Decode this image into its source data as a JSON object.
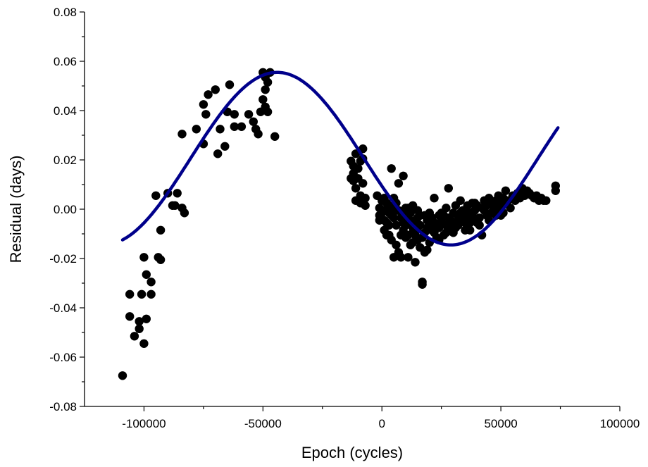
{
  "chart_data": {
    "type": "scatter",
    "title": "",
    "xlabel": "Epoch (cycles)",
    "ylabel": "Residual (days)",
    "xlim": [
      -125000,
      100000
    ],
    "ylim": [
      -0.08,
      0.08
    ],
    "x_ticks": [
      -100000,
      -50000,
      0,
      50000,
      100000
    ],
    "x_tick_labels": [
      "-100000",
      "-50000",
      "0",
      "50000",
      "100000"
    ],
    "y_ticks": [
      -0.08,
      -0.06,
      -0.04,
      -0.02,
      0.0,
      0.02,
      0.04,
      0.06,
      0.08
    ],
    "y_tick_labels": [
      "-0.08",
      "-0.06",
      "-0.04",
      "-0.02",
      "0.00",
      "0.02",
      "0.04",
      "0.06",
      "0.08"
    ],
    "grid": false,
    "legend": "none",
    "colors": {
      "points": "#000000",
      "fit": "#00008b"
    },
    "series": [
      {
        "type": "scatter",
        "points": [
          [
            -109000,
            -0.0675
          ],
          [
            -106000,
            -0.0345
          ],
          [
            -106000,
            -0.0435
          ],
          [
            -104000,
            -0.0515
          ],
          [
            -102000,
            -0.0485
          ],
          [
            -102000,
            -0.0455
          ],
          [
            -101000,
            -0.0345
          ],
          [
            -100000,
            -0.0545
          ],
          [
            -100000,
            -0.0195
          ],
          [
            -99000,
            -0.0445
          ],
          [
            -99000,
            -0.0265
          ],
          [
            -97000,
            -0.0295
          ],
          [
            -97000,
            -0.0345
          ],
          [
            -95000,
            0.0055
          ],
          [
            -94000,
            -0.0195
          ],
          [
            -93000,
            -0.0085
          ],
          [
            -93000,
            -0.0205
          ],
          [
            -90000,
            0.0065
          ],
          [
            -88000,
            0.0015
          ],
          [
            -87000,
            0.0015
          ],
          [
            -86000,
            0.0065
          ],
          [
            -84000,
            0.0005
          ],
          [
            -83000,
            -0.0015
          ],
          [
            -84000,
            0.0305
          ],
          [
            -78000,
            0.0325
          ],
          [
            -75000,
            0.0265
          ],
          [
            -75000,
            0.0425
          ],
          [
            -74000,
            0.0385
          ],
          [
            -73000,
            0.0465
          ],
          [
            -70000,
            0.0485
          ],
          [
            -69000,
            0.0225
          ],
          [
            -68000,
            0.0325
          ],
          [
            -66000,
            0.0255
          ],
          [
            -65000,
            0.0395
          ],
          [
            -64000,
            0.0505
          ],
          [
            -62000,
            0.0335
          ],
          [
            -62000,
            0.0385
          ],
          [
            -59000,
            0.0335
          ],
          [
            -56000,
            0.0385
          ],
          [
            -54000,
            0.0355
          ],
          [
            -53000,
            0.0325
          ],
          [
            -52000,
            0.0305
          ],
          [
            -51000,
            0.0395
          ],
          [
            -50000,
            0.0555
          ],
          [
            -50000,
            0.0445
          ],
          [
            -49000,
            0.0415
          ],
          [
            -49000,
            0.0485
          ],
          [
            -49000,
            0.0535
          ],
          [
            -48000,
            0.0395
          ],
          [
            -48000,
            0.0515
          ],
          [
            -47000,
            0.0555
          ],
          [
            -45000,
            0.0295
          ],
          [
            -13000,
            0.0195
          ],
          [
            -12000,
            0.0175
          ],
          [
            -12000,
            0.0145
          ],
          [
            -12000,
            0.0115
          ],
          [
            -11000,
            0.0225
          ],
          [
            -11000,
            0.0085
          ],
          [
            -10000,
            0.0165
          ],
          [
            -10000,
            0.0125
          ],
          [
            -9000,
            0.0055
          ],
          [
            -9000,
            0.0025
          ],
          [
            -8000,
            0.0245
          ],
          [
            -8000,
            0.0205
          ],
          [
            -8000,
            0.0105
          ],
          [
            -7000,
            0.0045
          ],
          [
            -7000,
            0.0015
          ],
          [
            -13000,
            0.0125
          ],
          [
            -11000,
            0.0035
          ],
          [
            -9000,
            0.0195
          ],
          [
            -2000,
            0.0055
          ],
          [
            -1000,
            0.0005
          ],
          [
            -1000,
            -0.0025
          ],
          [
            0,
            0.0035
          ],
          [
            0,
            -0.0015
          ],
          [
            1000,
            -0.0045
          ],
          [
            1000,
            -0.0085
          ],
          [
            2000,
            0.0025
          ],
          [
            2000,
            -0.0105
          ],
          [
            3000,
            -0.0015
          ],
          [
            3000,
            -0.0065
          ],
          [
            4000,
            0.0165
          ],
          [
            4000,
            -0.0125
          ],
          [
            5000,
            -0.0195
          ],
          [
            5000,
            0.0045
          ],
          [
            6000,
            -0.0065
          ],
          [
            6000,
            -0.0145
          ],
          [
            7000,
            0.0105
          ],
          [
            7000,
            -0.0175
          ],
          [
            8000,
            -0.0035
          ],
          [
            8000,
            -0.0195
          ],
          [
            9000,
            0.0135
          ],
          [
            9000,
            -0.0085
          ],
          [
            10000,
            0.0005
          ],
          [
            10000,
            -0.0115
          ],
          [
            11000,
            -0.0035
          ],
          [
            11000,
            -0.0195
          ],
          [
            12000,
            -0.0055
          ],
          [
            12000,
            -0.0145
          ],
          [
            13000,
            0.0015
          ],
          [
            13000,
            -0.0095
          ],
          [
            14000,
            -0.0215
          ],
          [
            14000,
            -0.0045
          ],
          [
            15000,
            -0.0005
          ],
          [
            15000,
            -0.0125
          ],
          [
            16000,
            -0.0065
          ],
          [
            16000,
            -0.0155
          ],
          [
            17000,
            -0.0295
          ],
          [
            17000,
            -0.0305
          ],
          [
            18000,
            -0.0025
          ],
          [
            18000,
            -0.0095
          ],
          [
            19000,
            -0.0165
          ],
          [
            19000,
            -0.0045
          ],
          [
            20000,
            -0.0135
          ],
          [
            20000,
            -0.0015
          ],
          [
            21000,
            -0.0085
          ],
          [
            22000,
            -0.0055
          ],
          [
            22000,
            0.0045
          ],
          [
            23000,
            -0.0115
          ],
          [
            24000,
            -0.0025
          ],
          [
            24000,
            -0.0075
          ],
          [
            25000,
            -0.0045
          ],
          [
            26000,
            -0.0105
          ],
          [
            27000,
            0.0005
          ],
          [
            27000,
            -0.0065
          ],
          [
            28000,
            0.0085
          ],
          [
            28000,
            -0.0035
          ],
          [
            29000,
            -0.0085
          ],
          [
            30000,
            -0.0015
          ],
          [
            30000,
            -0.0055
          ],
          [
            31000,
            0.0015
          ],
          [
            32000,
            -0.0065
          ],
          [
            32000,
            -0.0025
          ],
          [
            33000,
            0.0035
          ],
          [
            33000,
            -0.0045
          ],
          [
            34000,
            -0.0005
          ],
          [
            35000,
            -0.0085
          ],
          [
            35000,
            -0.0035
          ],
          [
            36000,
            0.0015
          ],
          [
            37000,
            -0.0055
          ],
          [
            37000,
            -0.0015
          ],
          [
            38000,
            0.0025
          ],
          [
            39000,
            -0.0045
          ],
          [
            39000,
            -0.0005
          ],
          [
            40000,
            0.0015
          ],
          [
            41000,
            -0.0035
          ],
          [
            42000,
            0.0005
          ],
          [
            42000,
            -0.0105
          ],
          [
            43000,
            0.0035
          ],
          [
            44000,
            -0.0025
          ],
          [
            44000,
            0.0015
          ],
          [
            45000,
            0.0045
          ],
          [
            46000,
            -0.0015
          ],
          [
            46000,
            0.0025
          ],
          [
            47000,
            0.0005
          ],
          [
            48000,
            0.0035
          ],
          [
            48000,
            -0.0025
          ],
          [
            49000,
            0.0055
          ],
          [
            50000,
            0.0015
          ],
          [
            50000,
            -0.0025
          ],
          [
            51000,
            0.0045
          ],
          [
            52000,
            0.0075
          ],
          [
            52000,
            0.0025
          ],
          [
            53000,
            0.0035
          ],
          [
            54000,
            0.0005
          ],
          [
            55000,
            0.0055
          ],
          [
            56000,
            0.0035
          ],
          [
            57000,
            0.0065
          ],
          [
            58000,
            0.0045
          ],
          [
            59000,
            0.0085
          ],
          [
            60000,
            0.0055
          ],
          [
            61000,
            0.0075
          ],
          [
            62000,
            0.0065
          ],
          [
            63000,
            0.0055
          ],
          [
            64000,
            0.0045
          ],
          [
            65000,
            0.0055
          ],
          [
            66000,
            0.0035
          ],
          [
            67000,
            0.0045
          ],
          [
            68000,
            0.0035
          ],
          [
            69000,
            0.0035
          ],
          [
            73000,
            0.0095
          ],
          [
            73000,
            0.0075
          ],
          [
            3000,
            0.0005
          ],
          [
            5000,
            -0.0035
          ],
          [
            7000,
            -0.0005
          ],
          [
            9000,
            -0.0055
          ],
          [
            11000,
            -0.0105
          ],
          [
            13000,
            -0.0075
          ],
          [
            15000,
            -0.0035
          ],
          [
            17000,
            -0.0115
          ],
          [
            19000,
            -0.0075
          ],
          [
            21000,
            -0.0035
          ],
          [
            23000,
            -0.0065
          ],
          [
            25000,
            -0.0015
          ],
          [
            27000,
            -0.0095
          ],
          [
            29000,
            -0.0045
          ],
          [
            31000,
            -0.0075
          ],
          [
            33000,
            -0.0015
          ],
          [
            35000,
            -0.0055
          ],
          [
            37000,
            -0.0085
          ],
          [
            39000,
            0.0025
          ],
          [
            41000,
            -0.0065
          ],
          [
            43000,
            -0.0005
          ],
          [
            45000,
            -0.0045
          ],
          [
            47000,
            0.0025
          ],
          [
            49000,
            -0.0005
          ],
          [
            51000,
            -0.0015
          ],
          [
            2000,
            -0.0055
          ],
          [
            4000,
            -0.0025
          ],
          [
            6000,
            -0.0005
          ],
          [
            8000,
            -0.0105
          ],
          [
            10000,
            -0.0065
          ],
          [
            12000,
            -0.0015
          ],
          [
            14000,
            -0.0105
          ],
          [
            16000,
            -0.0025
          ],
          [
            18000,
            -0.0175
          ],
          [
            20000,
            -0.0065
          ],
          [
            22000,
            -0.0095
          ],
          [
            24000,
            -0.0125
          ],
          [
            26000,
            -0.0025
          ],
          [
            28000,
            -0.0065
          ],
          [
            30000,
            -0.0095
          ],
          [
            32000,
            -0.0045
          ],
          [
            34000,
            -0.0035
          ],
          [
            36000,
            -0.0065
          ],
          [
            38000,
            -0.0025
          ],
          [
            40000,
            -0.0055
          ],
          [
            -1000,
            -0.0045
          ],
          [
            1000,
            -0.0005
          ],
          [
            1000,
            0.0045
          ],
          [
            3000,
            -0.0105
          ],
          [
            5000,
            0.0015
          ],
          [
            6000,
            0.0025
          ],
          [
            9000,
            -0.0015
          ],
          [
            11000,
            0.0005
          ],
          [
            13000,
            -0.0135
          ],
          [
            15000,
            -0.0075
          ]
        ]
      },
      {
        "type": "line",
        "model": "sinusoid",
        "offset": 0.0205,
        "amplitude": 0.035,
        "period": 146000,
        "peak_epoch": -44000,
        "x_range": [
          -109000,
          74000
        ]
      }
    ]
  }
}
